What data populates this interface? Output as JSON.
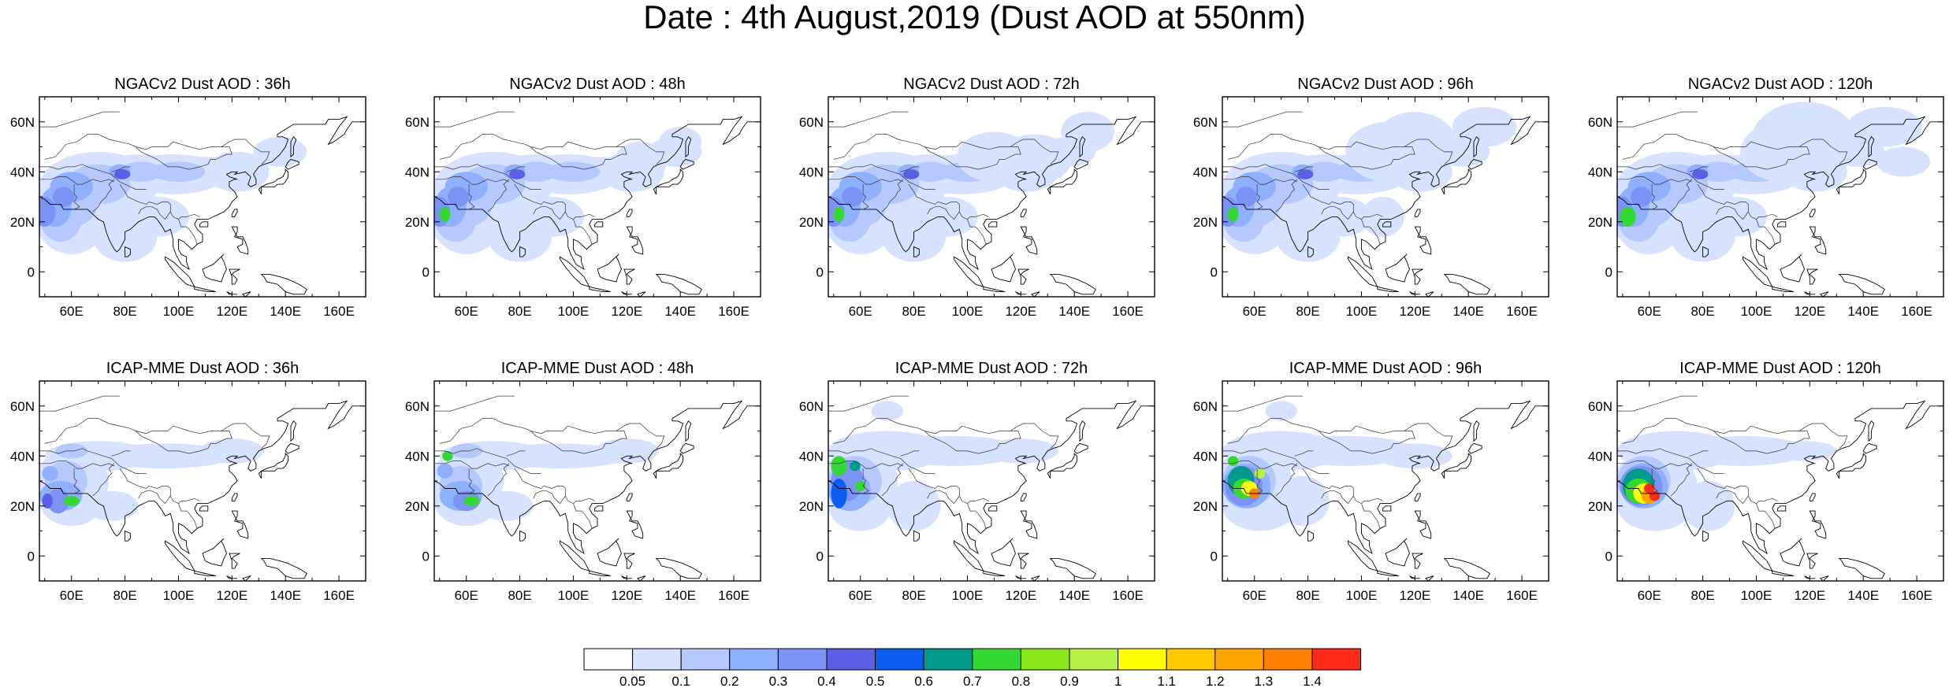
{
  "title": "Date : 4th August,2019 (Dust AOD at 550nm)",
  "map": {
    "lon_range": [
      48,
      170
    ],
    "lat_range": [
      -10,
      70
    ],
    "lon_ticks": [
      "60E",
      "80E",
      "100E",
      "120E",
      "140E",
      "160E"
    ],
    "lat_ticks": [
      "60N",
      "40N",
      "20N",
      "0"
    ]
  },
  "panels": [
    {
      "title": "NGACv2 Dust AOD : 36h"
    },
    {
      "title": "NGACv2 Dust AOD : 48h"
    },
    {
      "title": "NGACv2 Dust AOD : 72h"
    },
    {
      "title": "NGACv2 Dust AOD : 96h"
    },
    {
      "title": "NGACv2 Dust AOD : 120h"
    },
    {
      "title": "ICAP-MME Dust AOD : 36h"
    },
    {
      "title": "ICAP-MME Dust AOD : 48h"
    },
    {
      "title": "ICAP-MME Dust AOD : 72h"
    },
    {
      "title": "ICAP-MME Dust AOD : 96h"
    },
    {
      "title": "ICAP-MME Dust AOD : 120h"
    }
  ],
  "colorbar": {
    "labels": [
      "0.05",
      "0.1",
      "0.2",
      "0.3",
      "0.4",
      "0.5",
      "0.6",
      "0.7",
      "0.8",
      "0.9",
      "1",
      "1.1",
      "1.2",
      "1.3",
      "1.4"
    ],
    "colors": [
      "#ffffff",
      "#d6e2ff",
      "#b5c9ff",
      "#8fb0ff",
      "#7b93f5",
      "#5a5fe6",
      "#0c5ef0",
      "#009b8c",
      "#34d832",
      "#8ae61b",
      "#b7f046",
      "#ffff00",
      "#ffc800",
      "#ffa500",
      "#ff7f00",
      "#ff2a1a"
    ]
  }
}
